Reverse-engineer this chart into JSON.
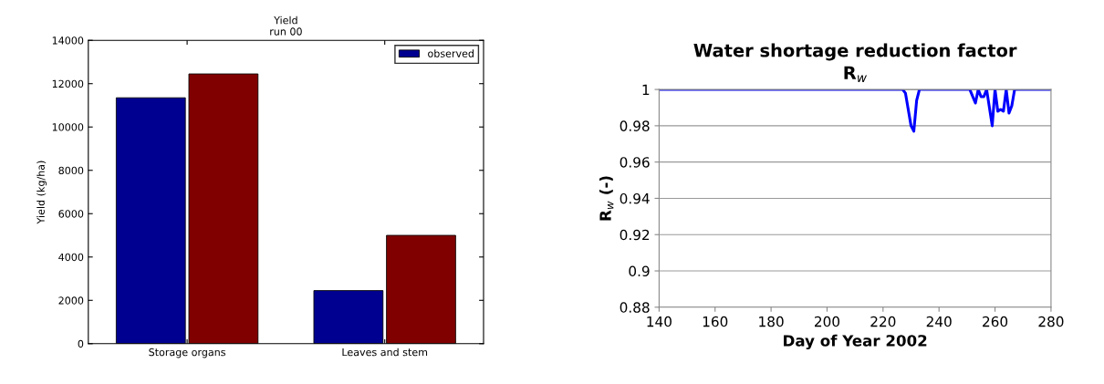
{
  "chart_data": [
    {
      "type": "bar",
      "title": "Yield",
      "subtitle": "run 00",
      "ylabel": "Yield (kg/ha)",
      "categories": [
        "Storage organs",
        "Leaves and stem"
      ],
      "series": [
        {
          "name": "observed",
          "color": "#000090",
          "values": [
            11350,
            2450
          ]
        },
        {
          "color": "#800000",
          "values": [
            12450,
            5000
          ]
        }
      ],
      "ylim": [
        0,
        14000
      ],
      "yticks": [
        0,
        2000,
        4000,
        6000,
        8000,
        10000,
        12000,
        14000
      ],
      "grid": false,
      "legend": "top right"
    },
    {
      "type": "line",
      "title": "Water shortage reduction factor",
      "subtitle": "R$_{w}$",
      "xlabel": "Day of Year 2002",
      "ylabel": "R$_{w}$ (-)",
      "series": [
        {
          "color": "#0000ff",
          "x": [
            140,
            227,
            228,
            230,
            231,
            232,
            233,
            251,
            253,
            254,
            255,
            256,
            257,
            259,
            260,
            261,
            262,
            263,
            264,
            265,
            266,
            267,
            280
          ],
          "values": [
            1,
            1,
            0.998,
            0.98,
            0.977,
            0.994,
            1,
            1,
            0.9925,
            1,
            0.996,
            0.996,
            1,
            0.98,
            1,
            0.988,
            0.989,
            0.988,
            1,
            0.987,
            0.991,
            1,
            1
          ]
        }
      ],
      "xlim": [
        140,
        280
      ],
      "xticks": [
        140,
        160,
        180,
        200,
        220,
        240,
        260,
        280
      ],
      "ylim": [
        0.88,
        1
      ],
      "yticks": [
        0.88,
        0.9,
        0.92,
        0.94,
        0.96,
        0.98,
        1
      ],
      "grid": "y",
      "legend": false
    }
  ]
}
